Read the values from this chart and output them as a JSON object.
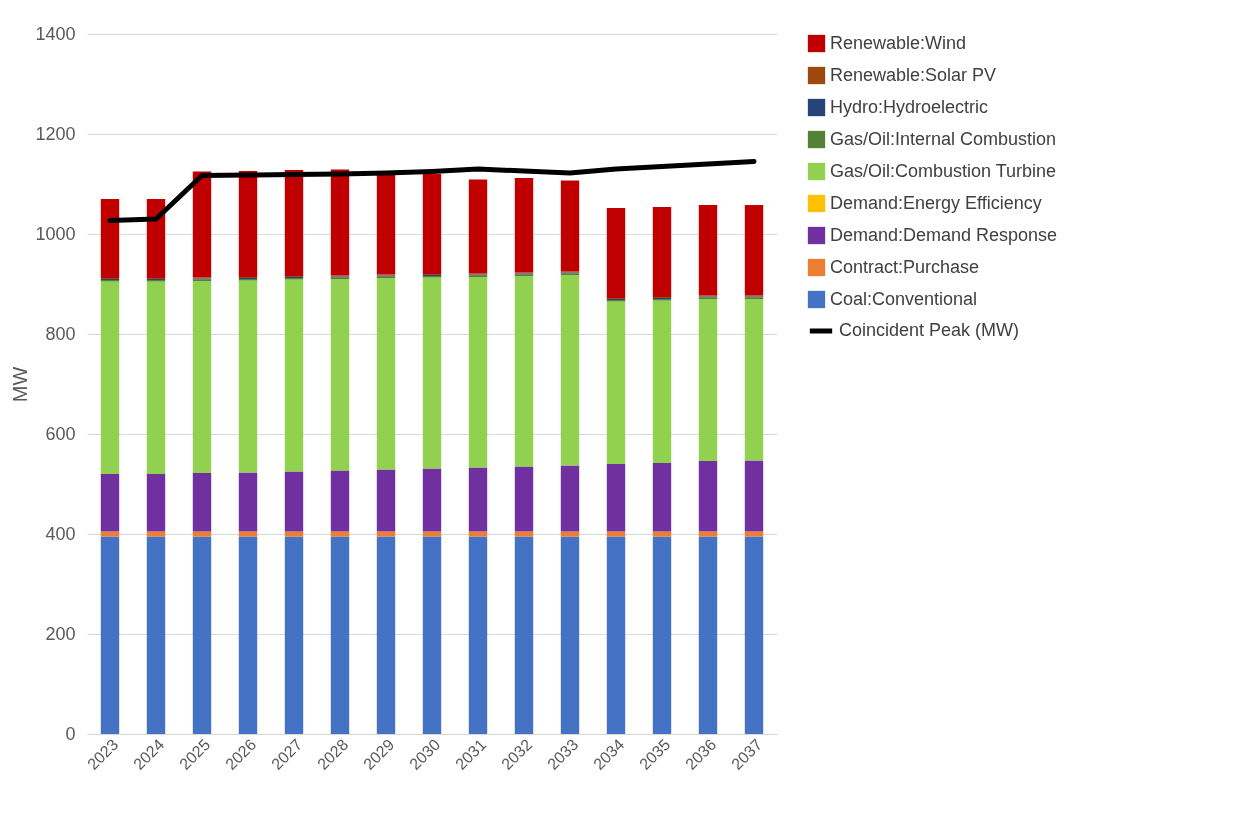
{
  "chart_data": {
    "type": "bar",
    "stacked": true,
    "ylabel": "MW",
    "ylim": [
      0,
      1400
    ],
    "yticks": [
      0,
      200,
      400,
      600,
      800,
      1000,
      1200,
      1400
    ],
    "grid": "y",
    "legend": "right",
    "categories": [
      "2023",
      "2024",
      "2025",
      "2026",
      "2027",
      "2028",
      "2029",
      "2030",
      "2031",
      "2032",
      "2033",
      "2034",
      "2035",
      "2036",
      "2037"
    ],
    "series": [
      {
        "name": "Coal:Conventional",
        "color": "#4472c4",
        "values": [
          395,
          395,
          395,
          395,
          395,
          395,
          395,
          395,
          395,
          395,
          395,
          395,
          395,
          395,
          395
        ]
      },
      {
        "name": "Contract:Purchase",
        "color": "#ed7d31",
        "values": [
          10,
          10,
          10,
          10,
          10,
          10,
          10,
          10,
          10,
          10,
          10,
          10,
          10,
          10,
          10
        ]
      },
      {
        "name": "Demand:Demand Response",
        "color": "#7030a0",
        "values": [
          115,
          115,
          117,
          118,
          120,
          122,
          124,
          126,
          128,
          130,
          132,
          135,
          137,
          141,
          142
        ]
      },
      {
        "name": "Demand:Energy Efficiency",
        "color": "#ffc000",
        "values": [
          0,
          0,
          0,
          0,
          0,
          0,
          0,
          0,
          0,
          0,
          0,
          0,
          0,
          0,
          0
        ]
      },
      {
        "name": "Gas/Oil:Combustion Turbine",
        "color": "#92d050",
        "values": [
          385,
          385,
          384,
          384,
          384,
          383,
          383,
          382,
          381,
          381,
          381,
          325,
          325,
          324,
          323
        ]
      },
      {
        "name": "Gas/Oil:Internal Combustion",
        "color": "#548235",
        "values": [
          3,
          3,
          3,
          3,
          3,
          3,
          3,
          3,
          3,
          3,
          3,
          3,
          3,
          3,
          3
        ]
      },
      {
        "name": "Hydro:Hydroelectric",
        "color": "#264478",
        "values": [
          2,
          2,
          2,
          2,
          2,
          2,
          2,
          2,
          2,
          2,
          2,
          2,
          2,
          2,
          2
        ]
      },
      {
        "name": "Renewable:Solar PV",
        "color": "#9e480e",
        "values": [
          2,
          2,
          2,
          2,
          2,
          2,
          2,
          2,
          2,
          2,
          2,
          2,
          2,
          2,
          2
        ]
      },
      {
        "name": "Renewable:Wind",
        "color": "#c00000",
        "values": [
          158,
          158,
          212,
          212,
          212,
          212,
          203,
          200,
          188,
          189,
          182,
          180,
          180,
          181,
          181
        ]
      },
      {
        "name": "Coincident Peak (MW)",
        "type": "line",
        "color": "#000000",
        "values": [
          1027,
          1030,
          1117,
          1118,
          1119,
          1120,
          1122,
          1125,
          1130,
          1126,
          1122,
          1130,
          1135,
          1140,
          1145
        ]
      }
    ]
  }
}
